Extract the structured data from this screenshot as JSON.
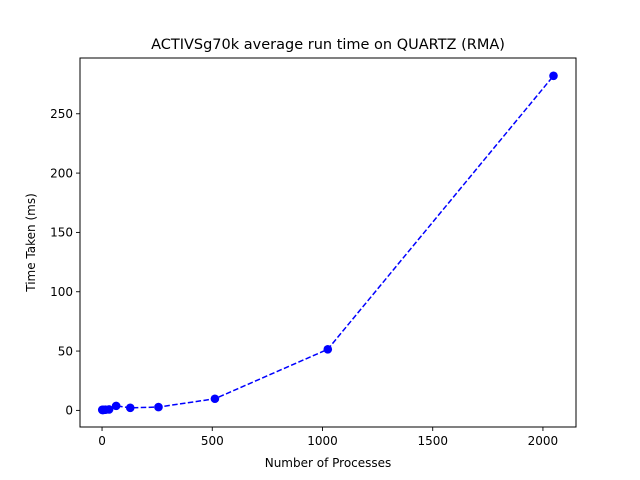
{
  "chart_data": {
    "type": "line",
    "title": "ACTIVSg70k average run time on QUARTZ (RMA)",
    "xlabel": "Number of Processes",
    "ylabel": "Time Taken (ms)",
    "xlim": [
      -100,
      2150
    ],
    "ylim": [
      -14,
      297
    ],
    "xticks": [
      0,
      500,
      1000,
      1500,
      2000
    ],
    "yticks": [
      0,
      50,
      100,
      150,
      200,
      250
    ],
    "grid": false,
    "series": [
      {
        "color": "#0000ff",
        "line_style": "dashed",
        "marker": "circle",
        "x": [
          1,
          2,
          4,
          8,
          16,
          32,
          64,
          128,
          256,
          512,
          1024,
          2048
        ],
        "y": [
          0.5,
          0.4,
          0.4,
          0.5,
          0.6,
          0.8,
          3.8,
          2.2,
          2.8,
          9.8,
          51.5,
          282
        ]
      }
    ]
  }
}
